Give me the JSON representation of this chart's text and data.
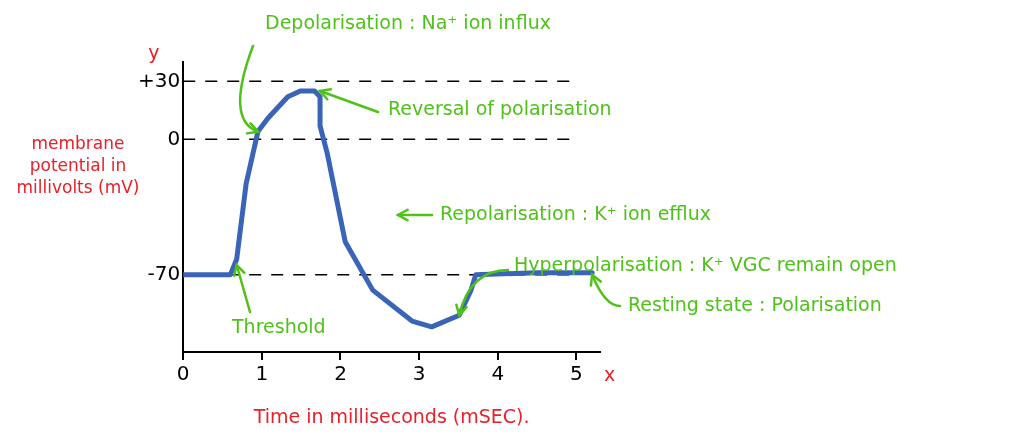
{
  "chart_data": {
    "type": "line",
    "xlabel": "Time in milliseconds (mSEC).",
    "ylabel": "membrane potential in millivolts (mV)",
    "xlim": [
      0,
      5.3
    ],
    "xticks": [
      0,
      1,
      2,
      3,
      4,
      5
    ],
    "ylim": [
      -110,
      40
    ],
    "yticks": [
      {
        "value": 30,
        "label": "+30"
      },
      0,
      -70
    ],
    "grid": false,
    "legend": false,
    "marker": "none",
    "line_style": "solid",
    "series": [
      {
        "color": "#3a64b8",
        "x": [
          0,
          0.6,
          0.68,
          0.8,
          0.95,
          1.08,
          1.33,
          1.49,
          1.67,
          1.74,
          1.74,
          1.83,
          2.06,
          2.41,
          2.91,
          3.16,
          3.51,
          3.66,
          3.72,
          4.5,
          5.2
        ],
        "values": [
          -70,
          -70,
          -62,
          -23,
          4,
          11,
          22,
          25,
          25,
          22,
          7,
          -7,
          -53,
          -78,
          -94,
          -97,
          -91,
          -78,
          -70,
          -69,
          -69
        ]
      }
    ],
    "ref_lines": [
      {
        "axis": "y",
        "value": 30,
        "color": "#000000",
        "line_style": "dashed"
      },
      {
        "axis": "y",
        "value": 0,
        "color": "#000000",
        "line_style": "dashed"
      },
      {
        "axis": "y",
        "value": -70,
        "color": "#000000",
        "line_style": "dashed"
      }
    ],
    "annotations": [
      {
        "text": "Depolarisation : Na⁺ ion influx",
        "x": 0.95,
        "y": 4
      },
      {
        "text": "Reversal of polarisation",
        "x": 1.74,
        "y": 25
      },
      "Repolarisation : K⁺ ion efflux",
      {
        "text": "Hyperpolarisation : K⁺ VGC remain open",
        "x": 3.51,
        "y": -91
      },
      {
        "text": "Resting state : Polarisation",
        "x": 5.2,
        "y": -70
      },
      {
        "text": "Threshold",
        "x": 0.68,
        "y": -65
      },
      "y",
      "x"
    ]
  }
}
